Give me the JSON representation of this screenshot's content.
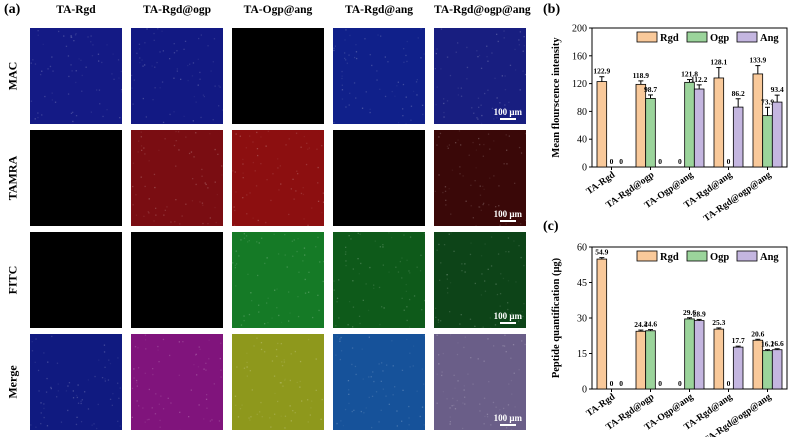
{
  "panel_a": {
    "label": "(a)",
    "columns": [
      "TA-Rgd",
      "TA-Rgd@ogp",
      "TA-Ogp@ang",
      "TA-Rgd@ang",
      "TA-Rgd@ogp@ang"
    ],
    "rows": [
      "MAC",
      "TAMRA",
      "FITC",
      "Merge"
    ],
    "scale_bar_label": "100 μm",
    "tile_colors": [
      [
        "#141a85",
        "#121983",
        "#000000",
        "#10208a",
        "#181e80"
      ],
      [
        "#000000",
        "#7a0d12",
        "#8c0f10",
        "#000000",
        "#3a0808"
      ],
      [
        "#000000",
        "#000000",
        "#157a26",
        "#0e5a1a",
        "#0d4418"
      ],
      [
        "#101a80",
        "#80147c",
        "#8e981c",
        "#16529a",
        "#6a5e88"
      ]
    ]
  },
  "panel_b": {
    "label": "(b)"
  },
  "panel_c": {
    "label": "(c)"
  },
  "chart_data": [
    {
      "type": "bar",
      "title": "",
      "xlabel": "",
      "ylabel": "Mean flourscence intensity",
      "ylim": [
        0,
        200
      ],
      "yticks": [
        0,
        40,
        80,
        120,
        160,
        200
      ],
      "categories": [
        "TA-Rgd",
        "TA-Rgd@ogp",
        "TA-Ogp@ang",
        "TA-Rgd@ang",
        "TA-Rgd@ogp@ang"
      ],
      "series": [
        {
          "name": "Rgd",
          "color": "#f9c99a",
          "values": [
            122.9,
            118.9,
            0,
            128.1,
            133.9
          ],
          "errors": [
            7,
            5,
            0,
            15,
            12
          ]
        },
        {
          "name": "Ogp",
          "color": "#9bd49b",
          "values": [
            0,
            98.7,
            121.8,
            0,
            73.9
          ],
          "errors": [
            0,
            5,
            4,
            0,
            12
          ]
        },
        {
          "name": "Ang",
          "color": "#c4b6e0",
          "values": [
            0,
            0,
            112.2,
            86.2,
            93.4
          ],
          "errors": [
            0,
            0,
            6,
            12,
            10
          ]
        }
      ],
      "value_labels": [
        [
          "122.9",
          "0",
          "0"
        ],
        [
          "118.9",
          "98.7",
          "0"
        ],
        [
          "0",
          "121.8",
          "112.2"
        ],
        [
          "128.1",
          "0",
          "86.2"
        ],
        [
          "133.9",
          "73.9",
          "93.4"
        ]
      ],
      "legend_position": "top",
      "grid": false
    },
    {
      "type": "bar",
      "title": "",
      "xlabel": "",
      "ylabel": "Peptide quantification (μg)",
      "ylim": [
        0,
        60
      ],
      "yticks": [
        0,
        15,
        30,
        45,
        60
      ],
      "categories": [
        "TA-Rgd",
        "TA-Rgd@ogp",
        "TA-Ogp@ang",
        "TA-Rgd@ang",
        "TA-Rgd@ogp@ang"
      ],
      "series": [
        {
          "name": "Rgd",
          "color": "#f9c99a",
          "values": [
            54.9,
            24.4,
            0,
            25.3,
            20.6
          ],
          "errors": [
            0.6,
            0.5,
            0,
            0.5,
            0.4
          ]
        },
        {
          "name": "Ogp",
          "color": "#9bd49b",
          "values": [
            0,
            24.6,
            29.6,
            0,
            16.2
          ],
          "errors": [
            0,
            0.5,
            0.5,
            0,
            0.4
          ]
        },
        {
          "name": "Ang",
          "color": "#c4b6e0",
          "values": [
            0,
            0,
            28.9,
            17.7,
            16.6
          ],
          "errors": [
            0,
            0,
            0.5,
            0.4,
            0.4
          ]
        }
      ],
      "value_labels": [
        [
          "54.9",
          "0",
          "0"
        ],
        [
          "24.4",
          "24.6",
          "0"
        ],
        [
          "0",
          "29.6",
          "28.9"
        ],
        [
          "25.3",
          "0",
          "17.7"
        ],
        [
          "20.6",
          "16.2",
          "16.6"
        ]
      ],
      "legend_position": "top",
      "grid": false
    }
  ]
}
